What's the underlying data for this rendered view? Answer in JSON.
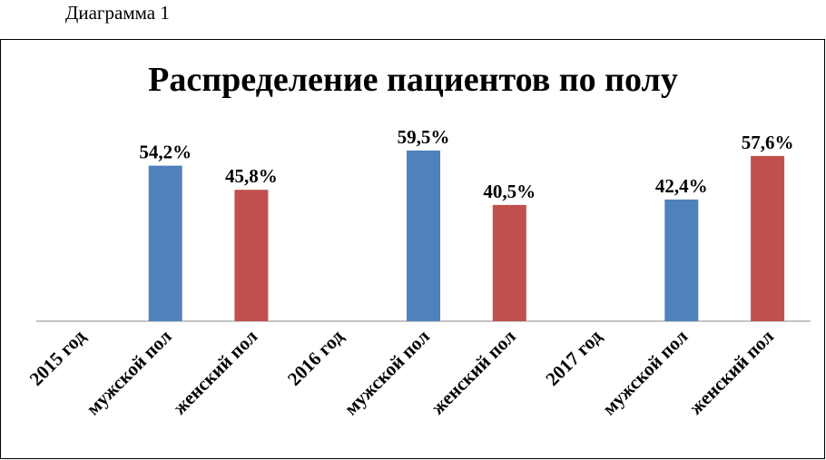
{
  "caption": "Диаграмма 1",
  "chart_data": {
    "type": "bar",
    "title": "Распределение пациентов по полу",
    "categories": [
      "2015 год",
      "мужской пол",
      "женский пол",
      "2016 год",
      "мужской пол",
      "женский пол",
      "2017 год",
      "мужской пол",
      "женский пол"
    ],
    "values": [
      null,
      54.2,
      45.8,
      null,
      59.5,
      40.5,
      null,
      42.4,
      57.6
    ],
    "labels": [
      "",
      "54,2%",
      "45,8%",
      "",
      "59,5%",
      "40,5%",
      "",
      "42,4%",
      "57,6%"
    ],
    "colors": [
      "",
      "#4f81bd",
      "#c0504d",
      "",
      "#4f81bd",
      "#c0504d",
      "",
      "#4f81bd",
      "#c0504d"
    ],
    "ylim": [
      0,
      68
    ],
    "grid": false,
    "legend": "none",
    "xlabel": "",
    "ylabel": ""
  }
}
